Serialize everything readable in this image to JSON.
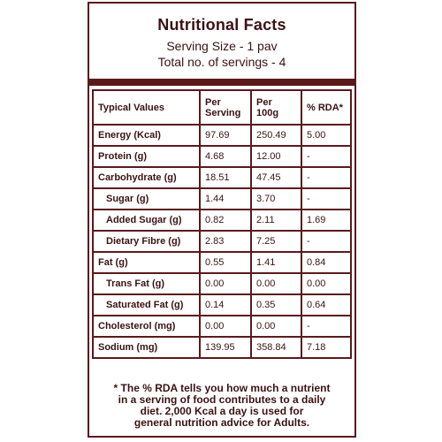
{
  "header": {
    "title": "Nutritional Facts",
    "serving_size": "Serving Size - 1 pav",
    "servings": "Total no. of servings - 4"
  },
  "table": {
    "columns": [
      "Typical Values",
      "Per Serving",
      "Per 100g",
      "% RDA*"
    ],
    "rows": [
      {
        "label": "Energy (Kcal)",
        "per_serving": "97.69",
        "per_100g": "250.49",
        "rda": "5.00"
      },
      {
        "label": "Protein (g)",
        "per_serving": "4.68",
        "per_100g": "12.00",
        "rda": "-"
      },
      {
        "label": "Carbohydrate (g)",
        "per_serving": "18.51",
        "per_100g": "47.45",
        "rda": "-"
      },
      {
        "label": "Sugar (g)",
        "per_serving": "1.44",
        "per_100g": "3.70",
        "rda": "-"
      },
      {
        "label": "Added Sugar (g)",
        "per_serving": "0.82",
        "per_100g": "2.11",
        "rda": "1.69"
      },
      {
        "label": "Dietary Fibre (g)",
        "per_serving": "2.83",
        "per_100g": "7.25",
        "rda": "-"
      },
      {
        "label": "Fat (g)",
        "per_serving": "0.55",
        "per_100g": "1.41",
        "rda": "0.84"
      },
      {
        "label": "Trans Fat (g)",
        "per_serving": "0.00",
        "per_100g": "0.00",
        "rda": "0.00"
      },
      {
        "label": "Saturated Fat (g)",
        "per_serving": "0.14",
        "per_100g": "0.35",
        "rda": "0.64"
      },
      {
        "label": "Cholesterol (mg)",
        "per_serving": "0.00",
        "per_100g": "0.00",
        "rda": "-"
      },
      {
        "label": "Sodium (mg)",
        "per_serving": "139.95",
        "per_100g": "358.84",
        "rda": "7.18"
      }
    ]
  },
  "footnote": {
    "line1": "* The % RDA tells you how much a nutrient",
    "line2": "in a serving of  food contributes to a daily",
    "line3": "diet. 2,000 Kcal a day is used for",
    "line4": "general nutrition advice for Adults."
  },
  "colors": {
    "border": "#5a1a1c",
    "text": "#3b1214",
    "background": "#ffffff"
  }
}
